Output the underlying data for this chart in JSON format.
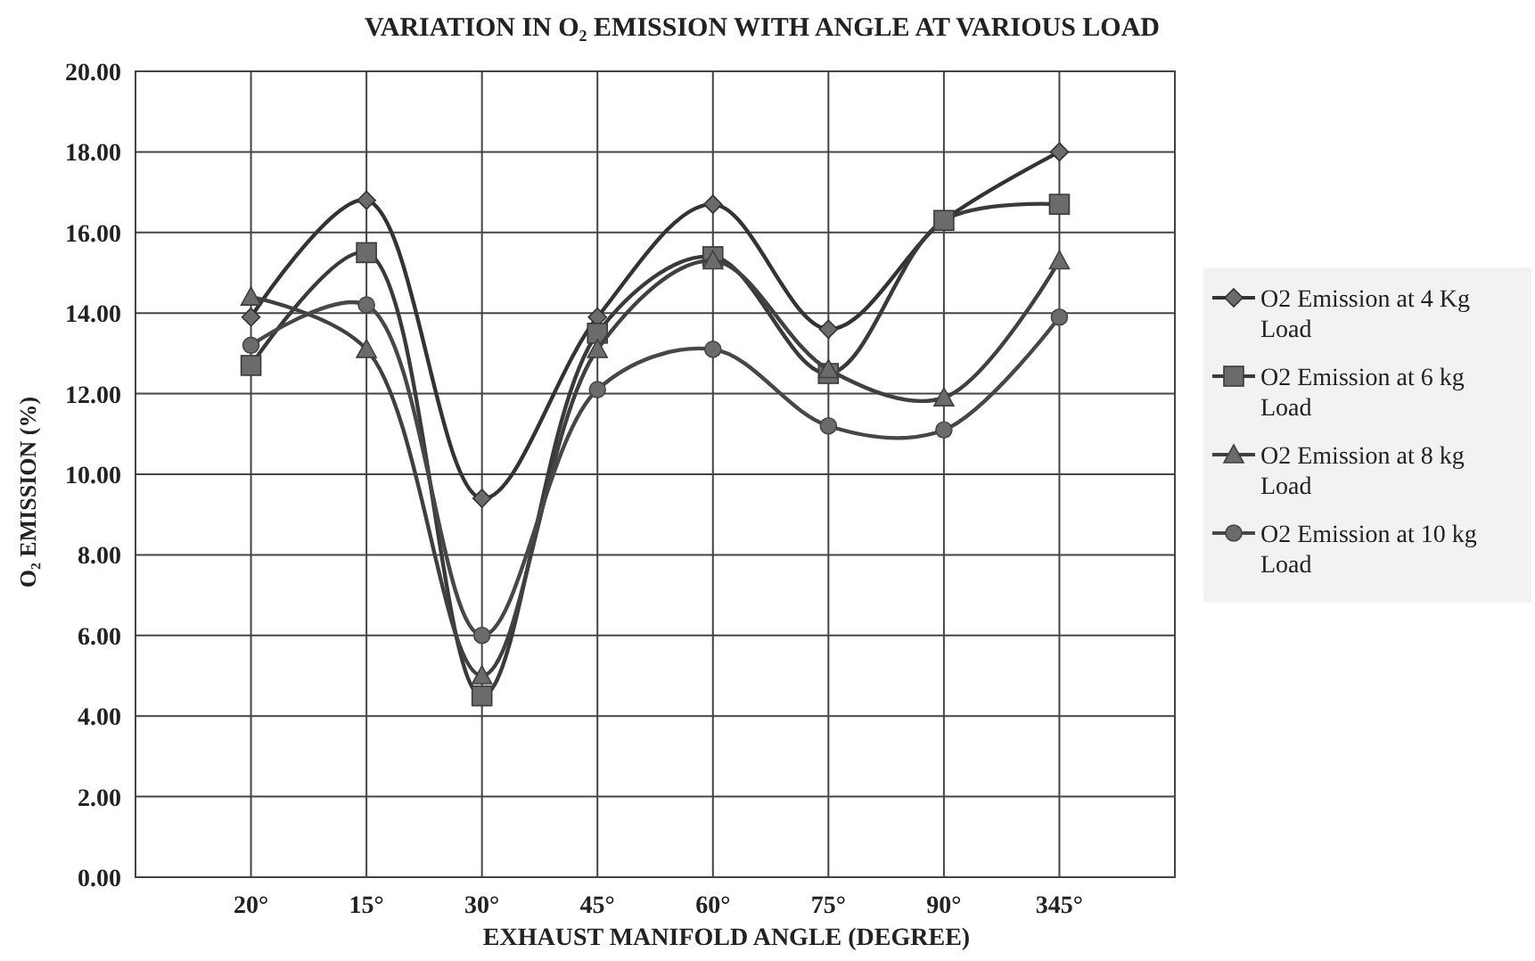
{
  "chart_data": {
    "type": "line",
    "title": "VARIATION IN O₂ EMISSION WITH ANGLE AT VARIOUS LOAD",
    "xlabel": "EXHAUST MANIFOLD ANGLE (DEGREE)",
    "ylabel": "O₂ EMISSION (%)",
    "categories": [
      "20°",
      "15°",
      "30°",
      "45°",
      "60°",
      "75°",
      "90°",
      "345°"
    ],
    "ylim": [
      0,
      20
    ],
    "yticks": [
      {
        "value": 0,
        "label": "0.00"
      },
      {
        "value": 2,
        "label": "2.00"
      },
      {
        "value": 4,
        "label": "4.00"
      },
      {
        "value": 6,
        "label": "6.00"
      },
      {
        "value": 8,
        "label": "8.00"
      },
      {
        "value": 10,
        "label": "10.00"
      },
      {
        "value": 12,
        "label": "12.00"
      },
      {
        "value": 14,
        "label": "14.00"
      },
      {
        "value": 16,
        "label": "16.00"
      },
      {
        "value": 18,
        "label": "18.00"
      },
      {
        "value": 20,
        "label": "20.00"
      }
    ],
    "grid": true,
    "legend": "right",
    "line_style": "solid",
    "series": [
      {
        "name": "O2 Emission at 4 Kg Load",
        "color": "#333333",
        "marker": "diamond",
        "values": [
          13.9,
          16.8,
          9.4,
          13.9,
          16.7,
          13.6,
          16.3,
          18.0
        ]
      },
      {
        "name": "O2 Emission at 6 kg Load",
        "color": "#3a3a3a",
        "marker": "square",
        "values": [
          12.7,
          15.5,
          4.5,
          13.5,
          15.4,
          12.5,
          16.3,
          16.7
        ]
      },
      {
        "name": "O2 Emission at 8 kg Load",
        "color": "#404040",
        "marker": "triangle",
        "values": [
          14.4,
          13.1,
          5.0,
          13.1,
          15.3,
          12.6,
          11.9,
          15.3
        ]
      },
      {
        "name": "O2 Emission at 10 kg Load",
        "color": "#474747",
        "marker": "circle",
        "values": [
          13.2,
          14.2,
          6.0,
          12.1,
          13.1,
          11.2,
          11.1,
          13.9
        ]
      }
    ]
  }
}
